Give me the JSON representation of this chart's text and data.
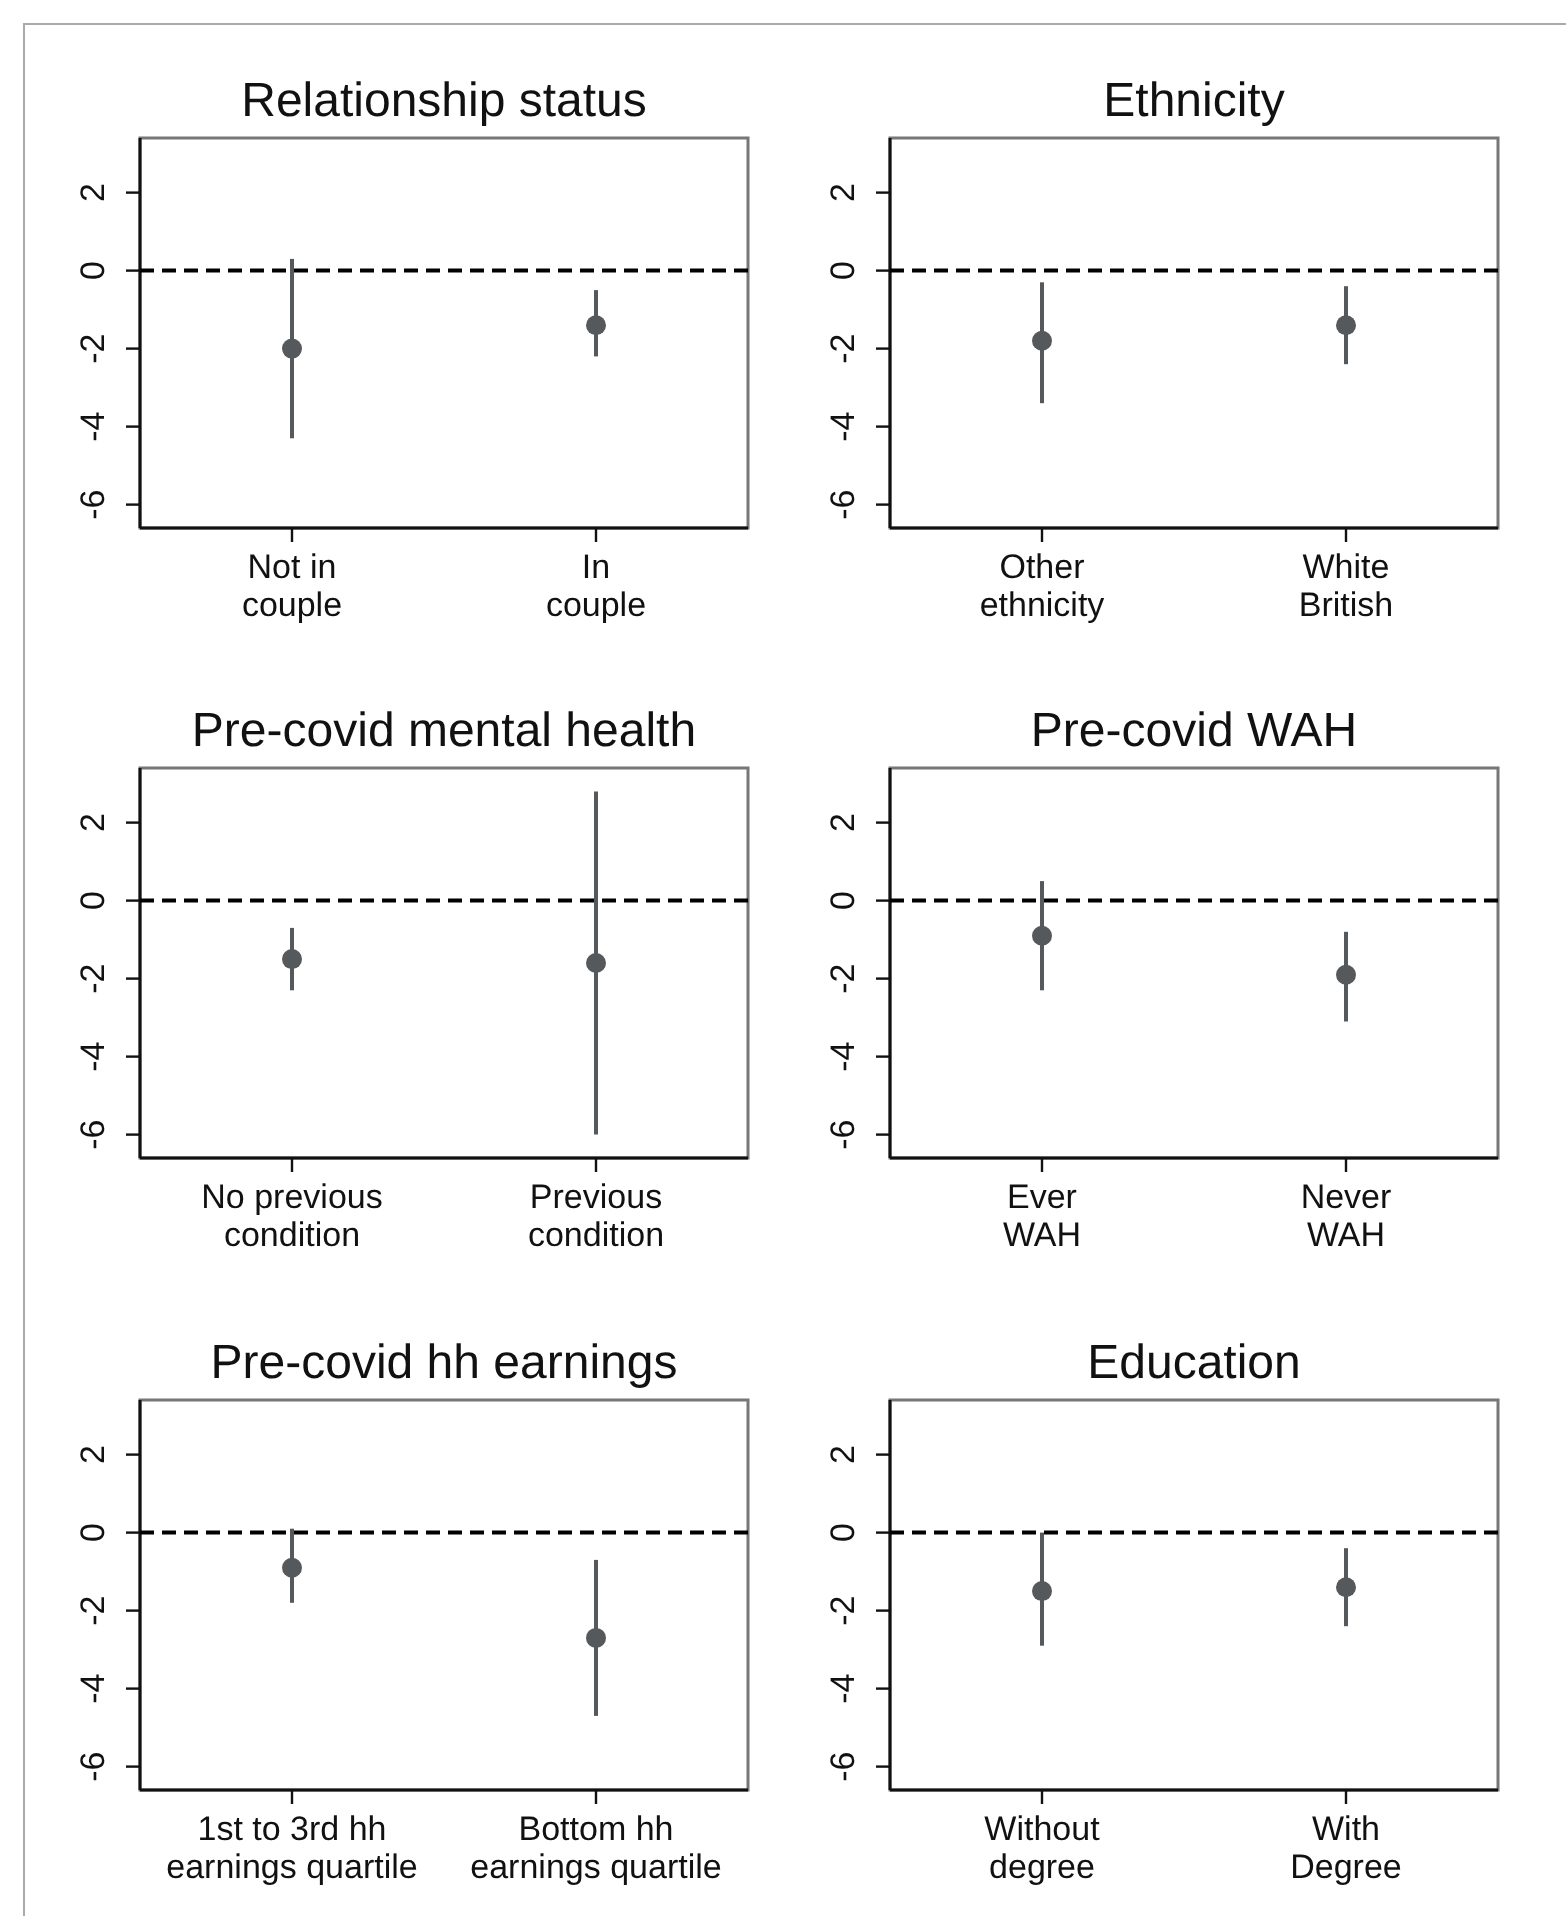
{
  "chart_data": [
    {
      "type": "scatter",
      "title": "Relationship status",
      "categories": [
        "Not in couple",
        "In couple"
      ],
      "values": [
        -2.0,
        -1.4
      ],
      "errors": [
        [
          -4.3,
          0.3
        ],
        [
          -2.2,
          -0.5
        ]
      ],
      "color": "#55595c",
      "marker": "circle",
      "ylim": [
        -6.6,
        3.4
      ],
      "yticks": [
        -6,
        -4,
        -2,
        0,
        2
      ],
      "ref_lines": [
        {
          "axis": "y",
          "value": 0,
          "color": "#000000",
          "line_style": "dashed"
        }
      ]
    },
    {
      "type": "scatter",
      "title": "Ethnicity",
      "categories": [
        "Other ethnicity",
        "White British"
      ],
      "values": [
        -1.8,
        -1.4
      ],
      "errors": [
        [
          -3.4,
          -0.3
        ],
        [
          -2.4,
          -0.4
        ]
      ],
      "color": "#55595c",
      "marker": "circle",
      "ylim": [
        -6.6,
        3.4
      ],
      "yticks": [
        -6,
        -4,
        -2,
        0,
        2
      ],
      "ref_lines": [
        {
          "axis": "y",
          "value": 0,
          "color": "#000000",
          "line_style": "dashed"
        }
      ]
    },
    {
      "type": "scatter",
      "title": "Pre-covid mental health",
      "categories": [
        "No previous condition",
        "Previous condition"
      ],
      "values": [
        -1.5,
        -1.6
      ],
      "errors": [
        [
          -2.3,
          -0.7
        ],
        [
          -6.0,
          2.8
        ]
      ],
      "color": "#55595c",
      "marker": "circle",
      "ylim": [
        -6.6,
        3.4
      ],
      "yticks": [
        -6,
        -4,
        -2,
        0,
        2
      ],
      "ref_lines": [
        {
          "axis": "y",
          "value": 0,
          "color": "#000000",
          "line_style": "dashed"
        }
      ]
    },
    {
      "type": "scatter",
      "title": "Pre-covid WAH",
      "categories": [
        "Ever WAH",
        "Never WAH"
      ],
      "values": [
        -0.9,
        -1.9
      ],
      "errors": [
        [
          -2.3,
          0.5
        ],
        [
          -3.1,
          -0.8
        ]
      ],
      "color": "#55595c",
      "marker": "circle",
      "ylim": [
        -6.6,
        3.4
      ],
      "yticks": [
        -6,
        -4,
        -2,
        0,
        2
      ],
      "ref_lines": [
        {
          "axis": "y",
          "value": 0,
          "color": "#000000",
          "line_style": "dashed"
        }
      ]
    },
    {
      "type": "scatter",
      "title": "Pre-covid hh earnings",
      "categories": [
        "1st to 3rd hh earnings quartile",
        "Bottom hh earnings quartile"
      ],
      "values": [
        -0.9,
        -2.7
      ],
      "errors": [
        [
          -1.8,
          0.1
        ],
        [
          -4.7,
          -0.7
        ]
      ],
      "color": "#55595c",
      "marker": "circle",
      "ylim": [
        -6.6,
        3.4
      ],
      "yticks": [
        -6,
        -4,
        -2,
        0,
        2
      ],
      "ref_lines": [
        {
          "axis": "y",
          "value": 0,
          "color": "#000000",
          "line_style": "dashed"
        }
      ]
    },
    {
      "type": "scatter",
      "title": "Education",
      "categories": [
        "Without degree",
        "With Degree"
      ],
      "values": [
        -1.5,
        -1.4
      ],
      "errors": [
        [
          -2.9,
          0.0
        ],
        [
          -2.4,
          -0.4
        ]
      ],
      "color": "#55595c",
      "marker": "circle",
      "ylim": [
        -6.6,
        3.4
      ],
      "yticks": [
        -6,
        -4,
        -2,
        0,
        2
      ],
      "ref_lines": [
        {
          "axis": "y",
          "value": 0,
          "color": "#000000",
          "line_style": "dashed"
        }
      ]
    }
  ]
}
